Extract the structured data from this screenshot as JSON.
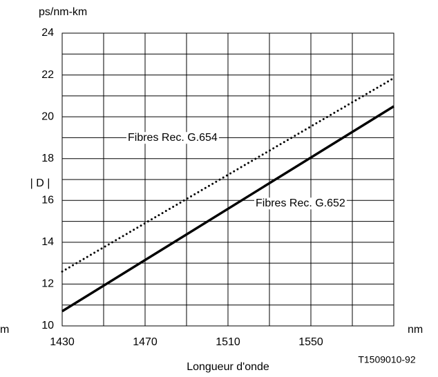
{
  "chart_data": {
    "type": "line",
    "y_unit": "ps/nm-km",
    "y_label": "| D |",
    "x_unit": "nm",
    "left_fragment": "m",
    "x_label": "Longueur d'onde",
    "code": "T1509010-92",
    "xlim": [
      1430,
      1590
    ],
    "xticks": [
      1430,
      1470,
      1510,
      1550
    ],
    "xminor": [
      1450,
      1490,
      1530,
      1570
    ],
    "ylim": [
      10,
      24
    ],
    "yticks": [
      10,
      12,
      14,
      16,
      18,
      20,
      22,
      24
    ],
    "yminor": [
      11,
      13,
      15,
      17,
      19,
      21,
      23
    ],
    "grid": true,
    "series": [
      {
        "name": "Fibres Rec. G.654",
        "color": "#000000",
        "style": "dotted",
        "x": [
          1430,
          1590
        ],
        "values": [
          12.6,
          21.85
        ]
      },
      {
        "name": "Fibres Rec. G.652",
        "color": "#000000",
        "style": "solid",
        "x": [
          1430,
          1590
        ],
        "values": [
          10.7,
          20.5
        ]
      }
    ]
  }
}
